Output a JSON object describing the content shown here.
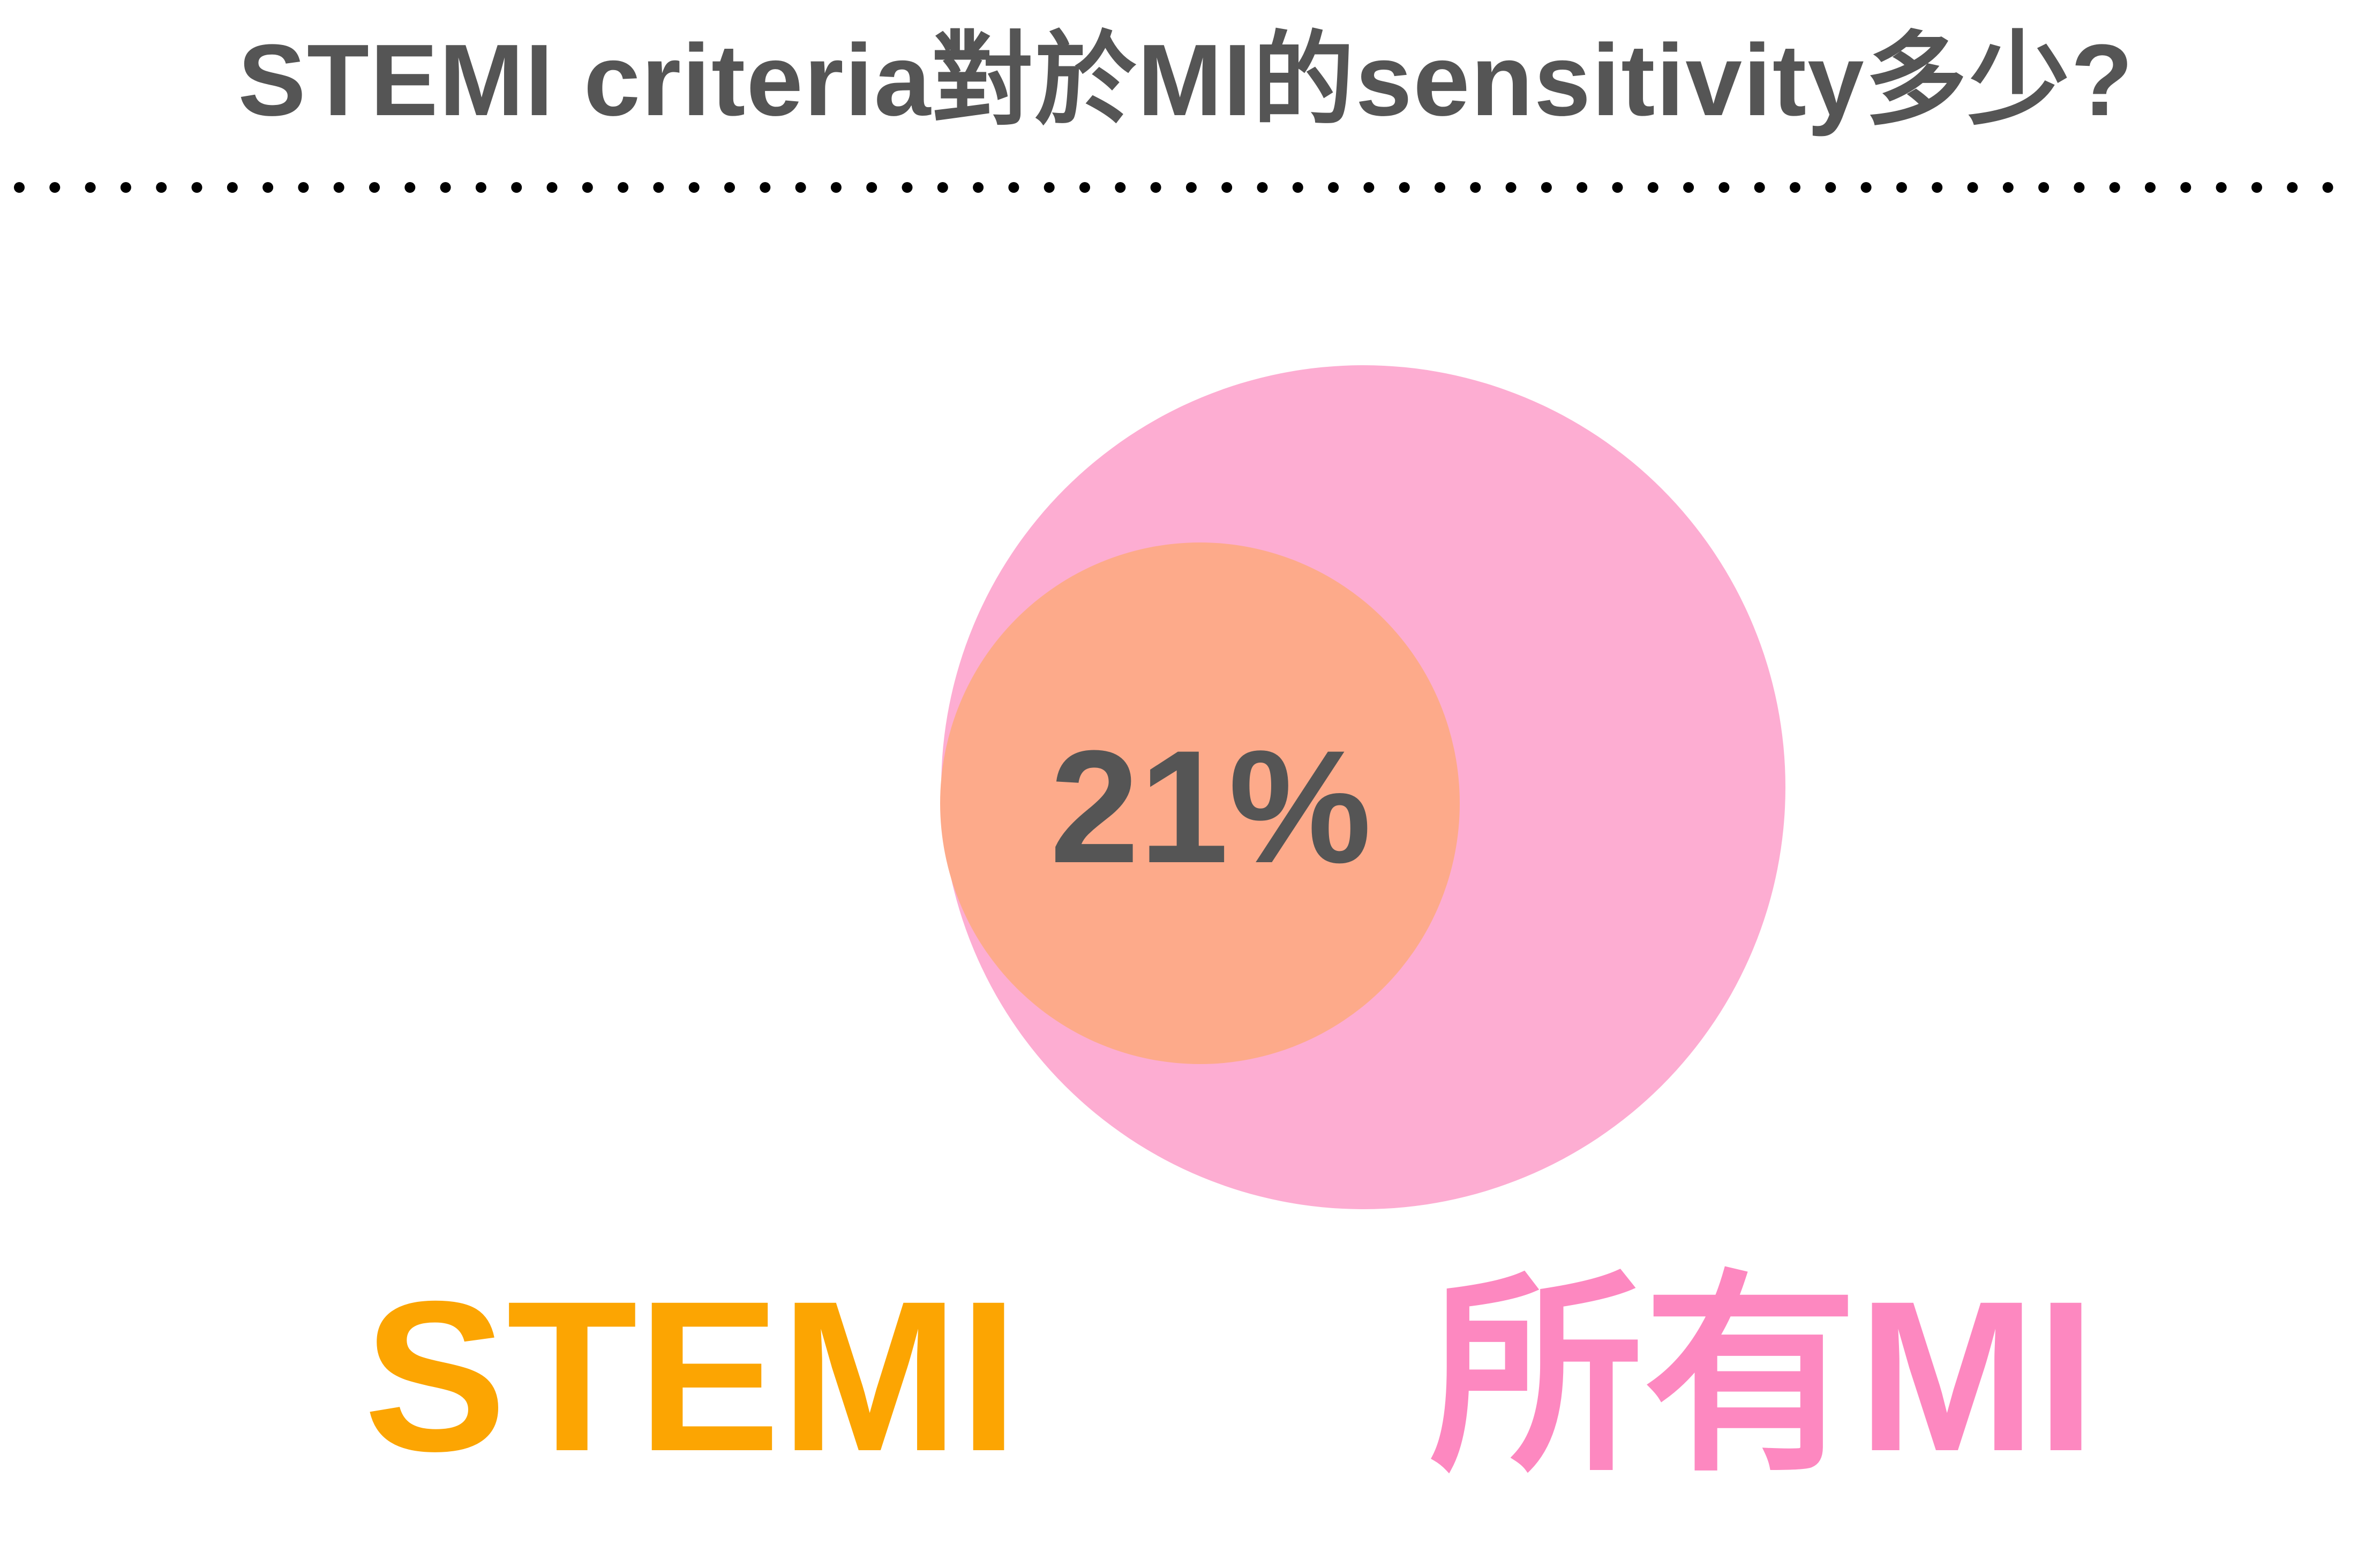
{
  "slide": {
    "title": "STEMI criteria對於MI的sensitivity多少?"
  },
  "diagram": {
    "type": "nested-circles",
    "outer_set": {
      "label": "所有MI",
      "color": "#fdadd2",
      "label_color": "#fd88c0"
    },
    "inner_set": {
      "label": "STEMI",
      "color": "#fdaa8a",
      "label_color": "#fca502"
    },
    "overlap_value": "21%",
    "value_color": "#555555"
  },
  "divider": {
    "style": "dotted",
    "color": "#000000"
  }
}
